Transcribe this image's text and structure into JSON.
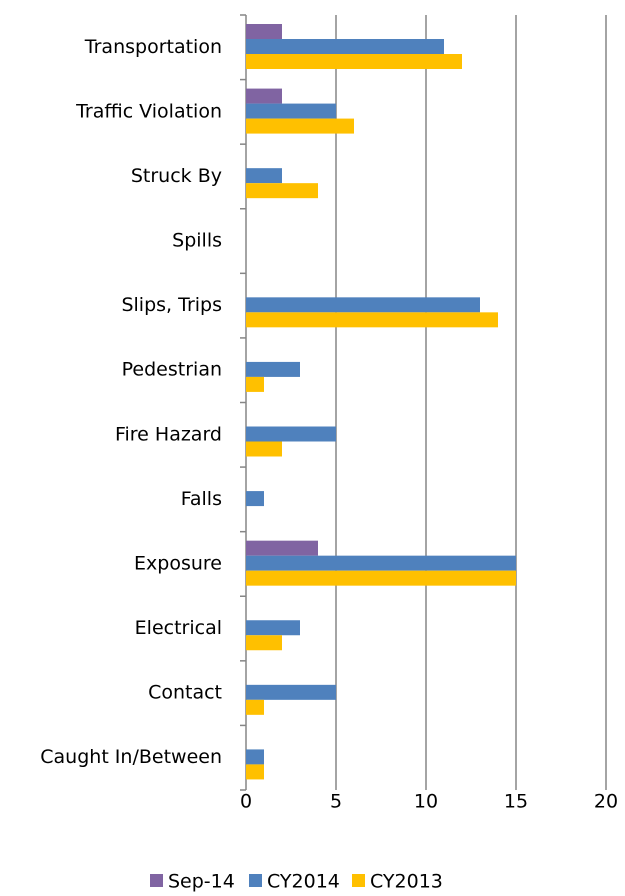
{
  "chart_data": {
    "type": "barh",
    "categories": [
      "Transportation",
      "Traffic Violation",
      "Struck By",
      "Spills",
      "Slips, Trips",
      "Pedestrian",
      "Fire Hazard",
      "Falls",
      "Exposure",
      "Electrical",
      "Contact",
      "Caught In/Between"
    ],
    "series": [
      {
        "name": "Sep-14",
        "color": "#8064a2",
        "values": [
          2,
          2,
          0,
          0,
          0,
          0,
          0,
          0,
          4,
          0,
          0,
          0
        ]
      },
      {
        "name": "CY2014",
        "color": "#4f81bd",
        "values": [
          11,
          5,
          2,
          0,
          13,
          3,
          5,
          1,
          15,
          3,
          5,
          1
        ]
      },
      {
        "name": "CY2013",
        "color": "#ffc000",
        "values": [
          12,
          6,
          4,
          0,
          14,
          1,
          2,
          0,
          15,
          2,
          1,
          1
        ]
      }
    ],
    "xlim": [
      0,
      20
    ],
    "xticks": [
      0,
      5,
      10,
      15,
      20
    ],
    "grid": true,
    "legend": "bottom"
  }
}
